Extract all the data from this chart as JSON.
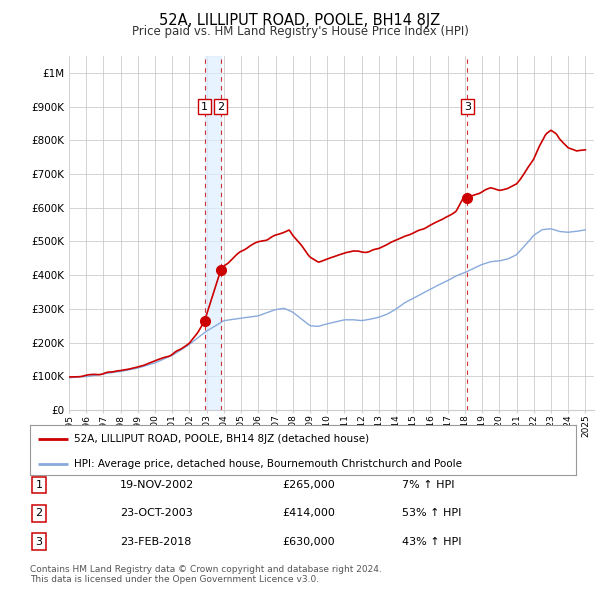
{
  "title": "52A, LILLIPUT ROAD, POOLE, BH14 8JZ",
  "subtitle": "Price paid vs. HM Land Registry's House Price Index (HPI)",
  "background_color": "#ffffff",
  "grid_color": "#cccccc",
  "ylim": [
    0,
    1050000
  ],
  "xlim_start": 1995.0,
  "xlim_end": 2025.5,
  "yticks": [
    0,
    100000,
    200000,
    300000,
    400000,
    500000,
    600000,
    700000,
    800000,
    900000,
    1000000
  ],
  "ytick_labels": [
    "£0",
    "£100K",
    "£200K",
    "£300K",
    "£400K",
    "£500K",
    "£600K",
    "£700K",
    "£800K",
    "£900K",
    "£1M"
  ],
  "xticks": [
    1995,
    1996,
    1997,
    1998,
    1999,
    2000,
    2001,
    2002,
    2003,
    2004,
    2005,
    2006,
    2007,
    2008,
    2009,
    2010,
    2011,
    2012,
    2013,
    2014,
    2015,
    2016,
    2017,
    2018,
    2019,
    2020,
    2021,
    2022,
    2023,
    2024,
    2025
  ],
  "property_line_color": "#cc0000",
  "hpi_line_color": "#88aadd",
  "transaction_line_color": "#cc0000",
  "shade_color": "#ddeeff",
  "transactions": [
    {
      "num": 1,
      "date": "19-NOV-2002",
      "x": 2002.88,
      "price": 265000,
      "pct": "7%",
      "dir": "↑"
    },
    {
      "num": 2,
      "date": "23-OCT-2003",
      "x": 2003.81,
      "price": 414000,
      "pct": "53%",
      "dir": "↑"
    },
    {
      "num": 3,
      "date": "23-FEB-2018",
      "x": 2018.14,
      "price": 630000,
      "pct": "43%",
      "dir": "↑"
    }
  ],
  "legend_label_red": "52A, LILLIPUT ROAD, POOLE, BH14 8JZ (detached house)",
  "legend_label_blue": "HPI: Average price, detached house, Bournemouth Christchurch and Poole",
  "footnote": "Contains HM Land Registry data © Crown copyright and database right 2024.\nThis data is licensed under the Open Government Licence v3.0."
}
